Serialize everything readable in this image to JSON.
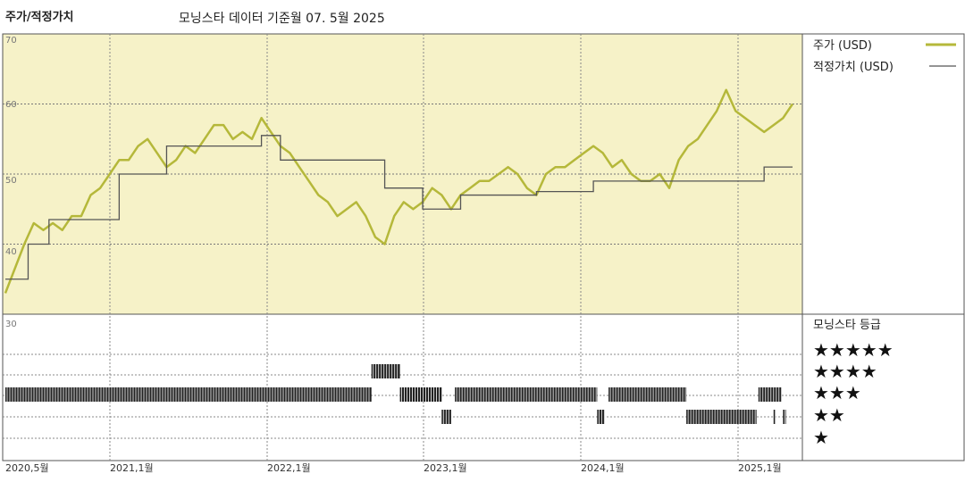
{
  "header": {
    "title": "주가/적정가치",
    "subtitle": "모닝스타 데이터 기준월 07. 5월 2025"
  },
  "colors": {
    "price": "#b5b83a",
    "fair": "#555555",
    "upper_bg": "#f6f2c8",
    "lower_bg": "#ffffff"
  },
  "chart_data": {
    "type": "line",
    "x_ticks": [
      "2020,5월",
      "2021,1월",
      "2022,1월",
      "2023,1월",
      "2024,1월",
      "2025,1월"
    ],
    "y_ticks": [
      "70",
      "60",
      "50",
      "40",
      "30"
    ],
    "ylim": [
      30,
      70
    ],
    "series": [
      {
        "name": "주가 (USD)",
        "points": [
          [
            0,
            33
          ],
          [
            1,
            40
          ],
          [
            1.5,
            43
          ],
          [
            2,
            42
          ],
          [
            2.5,
            43
          ],
          [
            3,
            42
          ],
          [
            3.5,
            44
          ],
          [
            4,
            44
          ],
          [
            4.5,
            47
          ],
          [
            5,
            48
          ],
          [
            5.5,
            50
          ],
          [
            6,
            52
          ],
          [
            6.5,
            52
          ],
          [
            7,
            54
          ],
          [
            7.5,
            55
          ],
          [
            8,
            53
          ],
          [
            8.5,
            51
          ],
          [
            9,
            52
          ],
          [
            9.5,
            54
          ],
          [
            10,
            53
          ],
          [
            10.5,
            55
          ],
          [
            11,
            57
          ],
          [
            11.5,
            57
          ],
          [
            12,
            55
          ],
          [
            12.5,
            56
          ],
          [
            13,
            55
          ],
          [
            13.5,
            58
          ],
          [
            14,
            56
          ],
          [
            14.5,
            54
          ],
          [
            15,
            53
          ],
          [
            15.5,
            51
          ],
          [
            16,
            49
          ],
          [
            16.5,
            47
          ],
          [
            17,
            46
          ],
          [
            17.5,
            44
          ],
          [
            18,
            45
          ],
          [
            18.5,
            46
          ],
          [
            19,
            44
          ],
          [
            19.5,
            41
          ],
          [
            20,
            40
          ],
          [
            20.5,
            44
          ],
          [
            21,
            46
          ],
          [
            21.5,
            45
          ],
          [
            22,
            46
          ],
          [
            22.5,
            48
          ],
          [
            23,
            47
          ],
          [
            23.5,
            45
          ],
          [
            24,
            47
          ],
          [
            24.5,
            48
          ],
          [
            25,
            49
          ],
          [
            25.5,
            49
          ],
          [
            26,
            50
          ],
          [
            26.5,
            51
          ],
          [
            27,
            50
          ],
          [
            27.5,
            48
          ],
          [
            28,
            47
          ],
          [
            28.5,
            50
          ],
          [
            29,
            51
          ],
          [
            29.5,
            51
          ],
          [
            30,
            52
          ],
          [
            30.5,
            53
          ],
          [
            31,
            54
          ],
          [
            31.5,
            53
          ],
          [
            32,
            51
          ],
          [
            32.5,
            52
          ],
          [
            33,
            50
          ],
          [
            33.5,
            49
          ],
          [
            34,
            49
          ],
          [
            34.5,
            50
          ],
          [
            35,
            48
          ],
          [
            35.5,
            52
          ],
          [
            36,
            54
          ],
          [
            36.5,
            55
          ],
          [
            37,
            57
          ],
          [
            37.5,
            59
          ],
          [
            38,
            62
          ],
          [
            38.5,
            59
          ],
          [
            39,
            58
          ],
          [
            39.5,
            57
          ],
          [
            40,
            56
          ],
          [
            40.5,
            57
          ],
          [
            41,
            58
          ],
          [
            41.5,
            60
          ]
        ]
      },
      {
        "name": "적정가치 (USD)",
        "steps": [
          [
            0,
            35
          ],
          [
            1.2,
            40
          ],
          [
            2.3,
            43.5
          ],
          [
            6,
            50
          ],
          [
            8.5,
            54
          ],
          [
            12.5,
            54
          ],
          [
            13.5,
            55.5
          ],
          [
            14.5,
            52
          ],
          [
            20,
            48
          ],
          [
            22,
            45
          ],
          [
            24,
            47
          ],
          [
            28,
            47.5
          ],
          [
            31,
            49
          ],
          [
            38,
            49
          ],
          [
            40,
            51
          ],
          [
            41.5,
            51
          ]
        ]
      }
    ],
    "x_range": [
      0,
      41.5
    ],
    "rating_label": "모닝스타 등급",
    "rating_segments": [
      {
        "stars": 3,
        "from": 0,
        "to": 19.3
      },
      {
        "stars": 4,
        "from": 19.3,
        "to": 20.8
      },
      {
        "stars": 3,
        "from": 20.8,
        "to": 23
      },
      {
        "stars": 2,
        "from": 23,
        "to": 23.5
      },
      {
        "stars": 3,
        "from": 23.7,
        "to": 31.2
      },
      {
        "stars": 2,
        "from": 31.2,
        "to": 31.6
      },
      {
        "stars": 3,
        "from": 31.8,
        "to": 35.9
      },
      {
        "stars": 2,
        "from": 35.9,
        "to": 39.6
      },
      {
        "stars": 3,
        "from": 39.7,
        "to": 40.9
      },
      {
        "stars": 2,
        "from": 40.5,
        "to": 40.6
      },
      {
        "stars": 2,
        "from": 41.0,
        "to": 41.15
      }
    ]
  },
  "legend": {
    "price_label": "주가 (USD)",
    "fair_label": "적정가치 (USD)",
    "rating_title": "모닝스타 등급",
    "star_rows": [
      "★★★★★",
      "★★★★",
      "★★★",
      "★★",
      "★"
    ]
  }
}
